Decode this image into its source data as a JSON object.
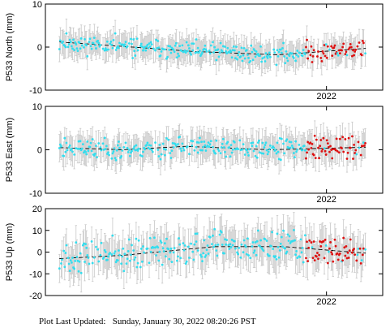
{
  "footer": {
    "label": "Plot Last Updated:",
    "value": "Sunday, January 30, 2022 08:20:26 PST"
  },
  "colors": {
    "primary_points": "#33ddee",
    "recent_points": "#dd1111",
    "error_bars": "#c8c8c8",
    "trend": "#000000"
  },
  "chart_data": [
    {
      "type": "scatter",
      "ylabel": "P533 North (mm)",
      "ylim": [
        -10,
        10
      ],
      "yticks": [
        -10,
        0,
        10
      ],
      "xlim": [
        2020.0,
        2022.4
      ],
      "xticks": [
        {
          "value": 2022.0,
          "label": "2022"
        }
      ],
      "trend": {
        "x": [
          2020.1,
          2021.05,
          2021.65,
          2022.28
        ],
        "y": [
          1.2,
          -1.0,
          -1.8,
          -0.3
        ]
      },
      "scatter_amp": 1.4,
      "error_bar": 2.8,
      "recent_start": 2021.85,
      "seed": 11
    },
    {
      "type": "scatter",
      "ylabel": "P533 East (mm)",
      "ylim": [
        -10,
        10
      ],
      "yticks": [
        -10,
        0,
        10
      ],
      "xlim": [
        2020.0,
        2022.4
      ],
      "xticks": [
        {
          "value": 2022.0,
          "label": "2022"
        }
      ],
      "trend": {
        "x": [
          2020.1,
          2020.55,
          2021.0,
          2021.6,
          2022.28
        ],
        "y": [
          0.5,
          0.0,
          0.8,
          0.0,
          0.6
        ]
      },
      "scatter_amp": 1.6,
      "error_bar": 3.0,
      "recent_start": 2021.85,
      "seed": 23
    },
    {
      "type": "scatter",
      "ylabel": "P533 Up (mm)",
      "ylim": [
        -20,
        20
      ],
      "yticks": [
        -20,
        -10,
        0,
        10,
        20
      ],
      "xlim": [
        2020.0,
        2022.4
      ],
      "xticks": [
        {
          "value": 2022.0,
          "label": "2022"
        }
      ],
      "trend": {
        "x": [
          2020.1,
          2020.55,
          2021.2,
          2021.7,
          2022.28
        ],
        "y": [
          -3.0,
          -1.5,
          2.5,
          2.5,
          -0.5
        ]
      },
      "scatter_amp": 4.5,
      "error_bar": 7.5,
      "recent_start": 2021.85,
      "seed": 37
    }
  ]
}
